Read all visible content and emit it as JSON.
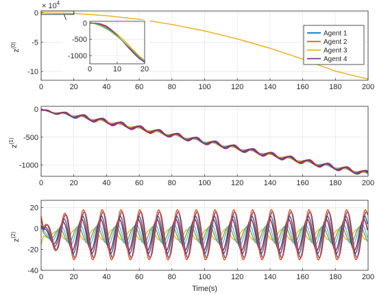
{
  "chart_data": [
    {
      "type": "line",
      "panel": "top",
      "ylabel": "z",
      "ylabel_sup": "(0)",
      "xlabel": "",
      "exponent_label": "× 10",
      "exponent_power": "4",
      "xlim": [
        0,
        200
      ],
      "ylim": [
        -11.5,
        0.3
      ],
      "xticks": [
        "0",
        "20",
        "40",
        "60",
        "80",
        "100",
        "120",
        "140",
        "160",
        "180",
        "200"
      ],
      "yticks": [
        "0",
        "-5",
        "-10"
      ],
      "ytick_values": [
        0,
        -5,
        -10
      ],
      "grid": true,
      "legend": {
        "placement": "top-right",
        "entries": [
          {
            "label": "Agent 1",
            "color": "#0072BD"
          },
          {
            "label": "Agent 2",
            "color": "#D95319"
          },
          {
            "label": "Agent 3",
            "color": "#EDB120"
          },
          {
            "label": "Agent 4",
            "color": "#7E2F8E"
          }
        ]
      },
      "series": [
        {
          "name": "Agent 3",
          "color": "#EDB120",
          "x": [
            0,
            20,
            40,
            60,
            80,
            100,
            120,
            140,
            160,
            180,
            200
          ],
          "y": [
            0,
            -0.12,
            -0.5,
            -1.12,
            -2.0,
            -3.1,
            -4.45,
            -6.05,
            -7.9,
            -9.95,
            -11.3
          ]
        }
      ],
      "inset": {
        "xlim": [
          0,
          20
        ],
        "ylim": [
          -1250,
          50
        ],
        "xticks": [
          "0",
          "10",
          "20"
        ],
        "yticks": [
          "0",
          "-500",
          "-1000"
        ],
        "ytick_values": [
          0,
          -500,
          -1000
        ],
        "grid": true,
        "series": [
          {
            "name": "Agent 1",
            "color": "#0072BD",
            "x": [
              0,
              2,
              4,
              6,
              8,
              10,
              12,
              14,
              16,
              18,
              20
            ],
            "y": [
              0,
              -20,
              -70,
              -150,
              -260,
              -390,
              -550,
              -720,
              -900,
              -1050,
              -1150
            ]
          },
          {
            "name": "Agent 2",
            "color": "#D95319",
            "x": [
              0,
              2,
              4,
              6,
              8,
              10,
              12,
              14,
              16,
              18,
              20
            ],
            "y": [
              0,
              -5,
              -30,
              -90,
              -210,
              -380,
              -560,
              -740,
              -920,
              -1080,
              -1190
            ]
          },
          {
            "name": "Agent 3",
            "color": "#EDB120",
            "x": [
              0,
              2,
              4,
              6,
              8,
              10,
              12,
              14,
              16,
              18,
              20
            ],
            "y": [
              0,
              -15,
              -55,
              -120,
              -215,
              -340,
              -490,
              -660,
              -840,
              -1010,
              -1160
            ]
          },
          {
            "name": "Agent 4",
            "color": "#7E2F8E",
            "x": [
              0,
              2,
              4,
              6,
              8,
              10,
              12,
              14,
              16,
              18,
              20
            ],
            "y": [
              0,
              -10,
              -45,
              -110,
              -230,
              -380,
              -560,
              -750,
              -930,
              -1090,
              -1200
            ]
          },
          {
            "name": "",
            "color": "#4DBEEE",
            "x": [
              0,
              2,
              4,
              6,
              8,
              10,
              12,
              14,
              16,
              18,
              20
            ],
            "y": [
              0,
              -25,
              -80,
              -160,
              -270,
              -400,
              -550,
              -710,
              -880,
              -1040,
              -1160
            ]
          },
          {
            "name": "",
            "color": "#77AC30",
            "x": [
              0,
              2,
              4,
              6,
              8,
              10,
              12,
              14,
              16,
              18,
              20
            ],
            "y": [
              0,
              -30,
              -90,
              -175,
              -285,
              -410,
              -555,
              -710,
              -870,
              -1030,
              -1150
            ]
          }
        ]
      }
    },
    {
      "type": "line",
      "panel": "middle",
      "ylabel": "z",
      "ylabel_sup": "(1)",
      "xlabel": "",
      "xlim": [
        0,
        200
      ],
      "ylim": [
        -1200,
        50
      ],
      "xticks": [
        "0",
        "20",
        "40",
        "60",
        "80",
        "100",
        "120",
        "140",
        "160",
        "180",
        "200"
      ],
      "yticks": [
        "0",
        "-500",
        "-1000"
      ],
      "ytick_values": [
        0,
        -500,
        -1000
      ],
      "grid": true,
      "base_trend": {
        "x": [
          0,
          20,
          40,
          60,
          80,
          100,
          120,
          140,
          160,
          180,
          200
        ],
        "y": [
          -20,
          -115,
          -225,
          -345,
          -460,
          -580,
          -700,
          -815,
          -930,
          -1040,
          -1150
        ]
      },
      "series": [
        {
          "name": "Agent 1",
          "color": "#0072BD",
          "oscillation_amplitude": 32,
          "oscillation_period": 11.5,
          "phase": 0.2
        },
        {
          "name": "Agent 2",
          "color": "#D95319",
          "oscillation_amplitude": 45,
          "oscillation_period": 11.5,
          "phase": 0.0
        },
        {
          "name": "Agent 3",
          "color": "#EDB120",
          "oscillation_amplitude": 6,
          "oscillation_period": 11.5,
          "phase": 0.0
        },
        {
          "name": "Agent 4",
          "color": "#7E2F8E",
          "oscillation_amplitude": 50,
          "oscillation_period": 11.5,
          "phase": -0.2
        },
        {
          "name": "",
          "color": "#4DBEEE",
          "oscillation_amplitude": 25,
          "oscillation_period": 11.5,
          "phase": 0.6
        },
        {
          "name": "",
          "color": "#77AC30",
          "oscillation_amplitude": 20,
          "oscillation_period": 11.5,
          "phase": 1.0
        },
        {
          "name": "",
          "color": "#A2142F",
          "oscillation_amplitude": 38,
          "oscillation_period": 11.5,
          "phase": 0.4
        }
      ]
    },
    {
      "type": "line",
      "panel": "bottom",
      "ylabel": "z",
      "ylabel_sup": "(2)",
      "xlabel": "Time(s)",
      "xlim": [
        0,
        200
      ],
      "ylim": [
        -40,
        27
      ],
      "xticks": [
        "0",
        "20",
        "40",
        "60",
        "80",
        "100",
        "120",
        "140",
        "160",
        "180",
        "200"
      ],
      "yticks": [
        "20",
        "0",
        "-20",
        "-40"
      ],
      "ytick_values": [
        20,
        0,
        -20,
        -40
      ],
      "grid": true,
      "series": [
        {
          "name": "Agent 1",
          "color": "#0072BD",
          "amplitude": 18,
          "offset": -6,
          "period": 11.5,
          "phase": 0.3
        },
        {
          "name": "Agent 2",
          "color": "#D95319",
          "amplitude": 24,
          "offset": -6,
          "period": 11.5,
          "phase": 0.0
        },
        {
          "name": "Agent 3",
          "color": "#EDB120",
          "amplitude": 5,
          "offset": -6,
          "period": 11.5,
          "phase": 2.8
        },
        {
          "name": "Agent 4",
          "color": "#7E2F8E",
          "amplitude": 22,
          "offset": -6,
          "period": 11.5,
          "phase": -0.3
        },
        {
          "name": "",
          "color": "#4DBEEE",
          "amplitude": 10,
          "offset": -6,
          "period": 11.5,
          "phase": 1.2
        },
        {
          "name": "",
          "color": "#77AC30",
          "amplitude": 8,
          "offset": -6,
          "period": 11.5,
          "phase": 1.8
        },
        {
          "name": "",
          "color": "#A2142F",
          "amplitude": 15,
          "offset": -6,
          "period": 11.5,
          "phase": 0.6
        }
      ]
    }
  ]
}
